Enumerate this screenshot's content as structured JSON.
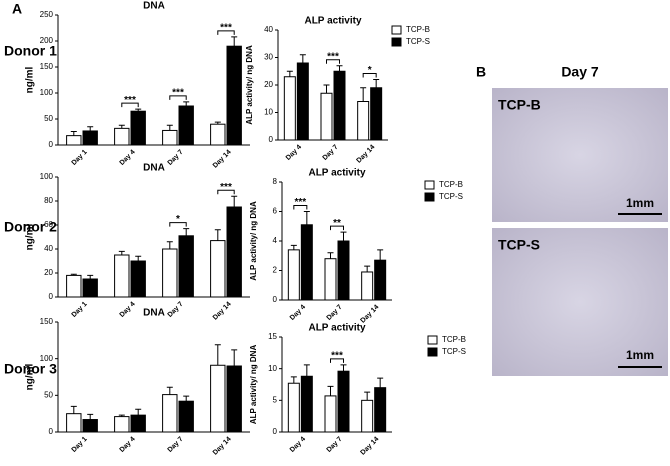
{
  "panel_a": "A",
  "panel_b": "B",
  "donors": [
    "Donor 1",
    "Donor 2",
    "Donor 3"
  ],
  "image_title": "Day 7",
  "images": [
    {
      "label": "TCP-B",
      "scale": "1mm"
    },
    {
      "label": "TCP-S",
      "scale": "1mm"
    }
  ],
  "chart_data": [
    {
      "type": "bar",
      "title": "DNA",
      "y_label": "ng/ml",
      "categories": [
        "Day 1",
        "Day 4",
        "Day 7",
        "Day 14"
      ],
      "series": [
        {
          "color": "#ffffff",
          "values": [
            18,
            32,
            28,
            40
          ],
          "errors": [
            8,
            6,
            10,
            4
          ]
        },
        {
          "color": "#000000",
          "values": [
            27,
            65,
            75,
            190
          ],
          "errors": [
            8,
            4,
            8,
            18
          ]
        }
      ],
      "ylim": [
        0,
        250
      ],
      "yticks": [
        0,
        50,
        100,
        150,
        200,
        250
      ],
      "annotations": [
        {
          "text": "***",
          "category": "Day 4"
        },
        {
          "text": "***",
          "category": "Day 7"
        },
        {
          "text": "***",
          "category": "Day 14"
        }
      ]
    },
    {
      "type": "bar",
      "title": "ALP activity",
      "y_label": "ALP activity/ ng DNA",
      "categories": [
        "Day 4",
        "Day 7",
        "Day 14"
      ],
      "series": [
        {
          "name": "TCP-B",
          "color": "#ffffff",
          "values": [
            23,
            17,
            14
          ],
          "errors": [
            2,
            3,
            5
          ]
        },
        {
          "name": "TCP-S",
          "color": "#000000",
          "values": [
            28,
            25,
            19
          ],
          "errors": [
            3,
            2,
            3
          ]
        }
      ],
      "ylim": [
        0,
        40
      ],
      "yticks": [
        0,
        10,
        20,
        30,
        40
      ],
      "annotations": [
        {
          "text": "***",
          "category": "Day 7"
        },
        {
          "text": "*",
          "category": "Day 14"
        }
      ]
    },
    {
      "type": "bar",
      "title": "DNA",
      "y_label": "ng/ml",
      "categories": [
        "Day 1",
        "Day 4",
        "Day 7",
        "Day 14"
      ],
      "series": [
        {
          "color": "#ffffff",
          "values": [
            18,
            35,
            40,
            47
          ],
          "errors": [
            1,
            3,
            6,
            9
          ]
        },
        {
          "color": "#000000",
          "values": [
            15,
            30,
            51,
            75
          ],
          "errors": [
            3,
            4,
            6,
            9
          ]
        }
      ],
      "ylim": [
        0,
        100
      ],
      "yticks": [
        0,
        20,
        40,
        60,
        80,
        100
      ],
      "annotations": [
        {
          "text": "*",
          "category": "Day 7"
        },
        {
          "text": "***",
          "category": "Day 14"
        }
      ]
    },
    {
      "type": "bar",
      "title": "ALP activity",
      "y_label": "ALP activity/ ng DNA",
      "categories": [
        "Day 4",
        "Day 7",
        "Day 14"
      ],
      "series": [
        {
          "name": "TCP-B",
          "color": "#ffffff",
          "values": [
            3.4,
            2.8,
            1.9
          ],
          "errors": [
            0.3,
            0.4,
            0.4
          ]
        },
        {
          "name": "TCP-S",
          "color": "#000000",
          "values": [
            5.1,
            4.0,
            2.7
          ],
          "errors": [
            0.9,
            0.6,
            0.7
          ]
        }
      ],
      "ylim": [
        0,
        8
      ],
      "yticks": [
        0,
        2,
        4,
        6,
        8
      ],
      "annotations": [
        {
          "text": "***",
          "category": "Day 4"
        },
        {
          "text": "**",
          "category": "Day 7"
        }
      ]
    },
    {
      "type": "bar",
      "title": "DNA",
      "y_label": "ng/ml",
      "categories": [
        "Day 1",
        "Day 4",
        "Day 7",
        "Day 14"
      ],
      "series": [
        {
          "color": "#ffffff",
          "values": [
            25,
            21,
            51,
            91
          ],
          "errors": [
            10,
            2,
            10,
            28
          ]
        },
        {
          "color": "#000000",
          "values": [
            17,
            23,
            42,
            90
          ],
          "errors": [
            7,
            8,
            7,
            22
          ]
        }
      ],
      "ylim": [
        0,
        150
      ],
      "yticks": [
        0,
        50,
        100,
        150
      ],
      "annotations": []
    },
    {
      "type": "bar",
      "title": "ALP activity",
      "y_label": "ALP activity/ ng DNA",
      "categories": [
        "Day 4",
        "Day 7",
        "Day 14"
      ],
      "series": [
        {
          "name": "TCP-B",
          "color": "#ffffff",
          "values": [
            7.7,
            5.7,
            5.0
          ],
          "errors": [
            1.0,
            1.5,
            1.3
          ]
        },
        {
          "name": "TCP-S",
          "color": "#000000",
          "values": [
            8.8,
            9.6,
            7.0
          ],
          "errors": [
            1.8,
            1.0,
            1.5
          ]
        }
      ],
      "ylim": [
        0,
        15
      ],
      "yticks": [
        0,
        5,
        10,
        15
      ],
      "annotations": [
        {
          "text": "***",
          "category": "Day 7"
        }
      ]
    }
  ]
}
